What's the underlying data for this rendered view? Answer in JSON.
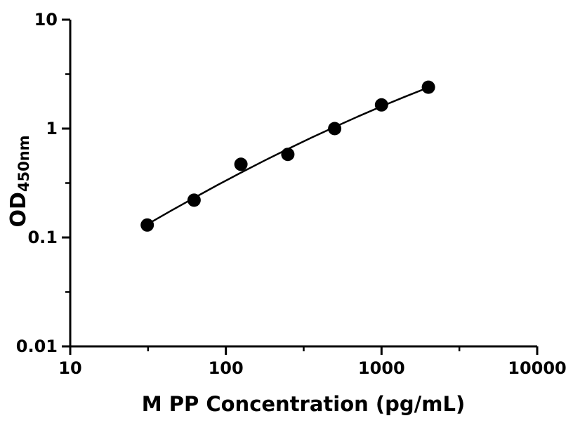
{
  "page": {
    "background": "#ffffff"
  },
  "chart_data": {
    "type": "scatter",
    "title": "",
    "xlabel": "M PP Concentration (pg/mL)",
    "ylabel_main": "OD",
    "ylabel_sub": "450nm",
    "x_scale": "log",
    "y_scale": "log",
    "xlim": [
      10,
      10000
    ],
    "ylim": [
      0.01,
      10
    ],
    "grid": false,
    "legend": false,
    "color": "#000000",
    "x_ticks": [
      {
        "value": 10,
        "label": "10"
      },
      {
        "value": 100,
        "label": "100"
      },
      {
        "value": 1000,
        "label": "1000"
      },
      {
        "value": 10000,
        "label": "10000"
      }
    ],
    "y_ticks": [
      {
        "value": 10,
        "label": "10"
      },
      {
        "value": 1,
        "label": "1"
      },
      {
        "value": 0.1,
        "label": "0.1"
      },
      {
        "value": 0.01,
        "label": "0.01"
      }
    ],
    "x_minor_ticks": [
      31.623,
      316.23,
      3162.3
    ],
    "y_minor_ticks": [
      3.1623,
      0.31623,
      0.031623
    ],
    "series": [
      {
        "marker": "circle",
        "marker_color": "#000000",
        "points": [
          {
            "x": 31.25,
            "y": 0.13
          },
          {
            "x": 62.5,
            "y": 0.22
          },
          {
            "x": 125,
            "y": 0.47
          },
          {
            "x": 250,
            "y": 0.58
          },
          {
            "x": 500,
            "y": 1.0
          },
          {
            "x": 1000,
            "y": 1.65
          },
          {
            "x": 2000,
            "y": 2.4
          }
        ]
      }
    ],
    "fit_curve": [
      [
        31.25,
        0.132
      ],
      [
        44.7,
        0.177
      ],
      [
        63.1,
        0.233
      ],
      [
        89.1,
        0.305
      ],
      [
        125.9,
        0.396
      ],
      [
        177.8,
        0.51
      ],
      [
        251.2,
        0.651
      ],
      [
        354.8,
        0.825
      ],
      [
        501.2,
        1.037
      ],
      [
        707.9,
        1.293
      ],
      [
        1000,
        1.598
      ],
      [
        1412.5,
        1.961
      ],
      [
        2000,
        2.389
      ]
    ]
  }
}
